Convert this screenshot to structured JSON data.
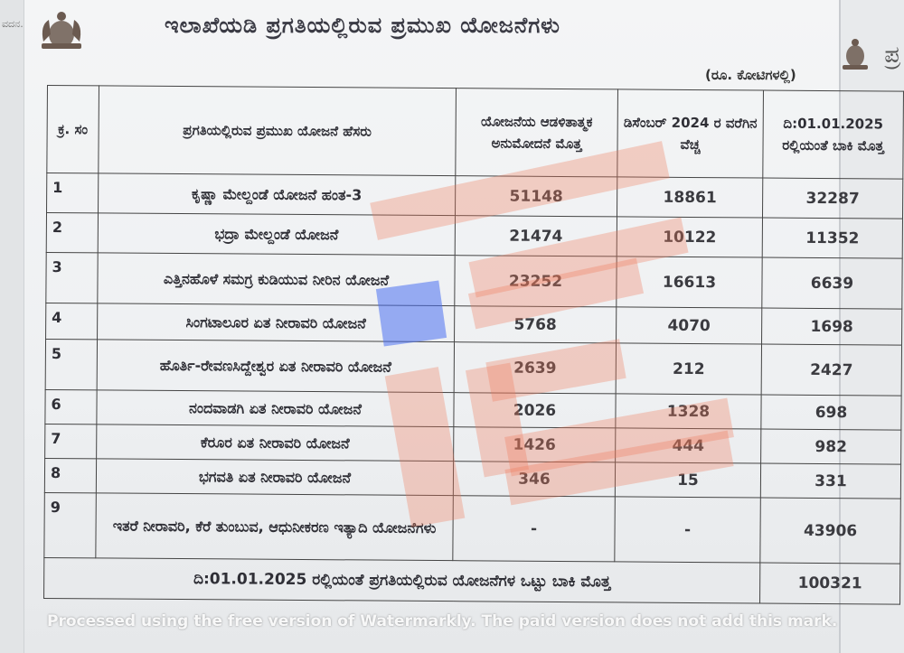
{
  "margin_left_text": "ವದನ.",
  "margin_right_text": "ಪ್ರ",
  "title": "ಇಲಾಖೆಯಡಿ ಪ್ರಗತಿಯಲ್ಲಿರುವ ಪ್ರಮುಖ ಯೋಜನೆಗಳು",
  "unit_note": "(ರೂ. ಕೋಟಿಗಳಲ್ಲಿ)",
  "table": {
    "headers": {
      "sl_no": "ಕ್ರ. ಸಂ",
      "name": "ಪ್ರಗತಿಯಲ್ಲಿರುವ ಪ್ರಮುಖ ಯೋಜನೆ ಹೆಸರು",
      "sanctioned": "ಯೋಜನೆಯ ಆಡಳಿತಾತ್ಮಕ ಅನುಮೋದನೆ ಮೊತ್ತ",
      "spent": "ಡಿಸೆಂಬರ್ 2024 ರ ವರೆಗಿನ ವೆಚ್ಚ",
      "balance": "ದಿ:01.01.2025 ರಲ್ಲಿಯಂತೆ ಬಾಕಿ ಮೊತ್ತ"
    },
    "rows": [
      {
        "no": "1",
        "name": "ಕೃಷ್ಣಾ ಮೇಲ್ದಂಡೆ ಯೋಜನೆ ಹಂತ-3",
        "sanctioned": "51148",
        "spent": "18861",
        "balance": "32287"
      },
      {
        "no": "2",
        "name": "ಭದ್ರಾ ಮೇಲ್ದಂಡೆ ಯೋಜನೆ",
        "sanctioned": "21474",
        "spent": "10122",
        "balance": "11352"
      },
      {
        "no": "3",
        "name": "ಎತ್ತಿನಹೊಳೆ ಸಮಗ್ರ ಕುಡಿಯುವ ನೀರಿನ ಯೋಜನೆ",
        "sanctioned": "23252",
        "spent": "16613",
        "balance": "6639"
      },
      {
        "no": "4",
        "name": "ಸಿಂಗಟಾಲೂರ ಏತ ನೀರಾವರಿ ಯೋಜನೆ",
        "sanctioned": "5768",
        "spent": "4070",
        "balance": "1698"
      },
      {
        "no": "5",
        "name": "ಹೊರ್ತಿ-ರೇವಣಸಿದ್ದೇಶ್ವರ ಏತ ನೀರಾವರಿ ಯೋಜನೆ",
        "sanctioned": "2639",
        "spent": "212",
        "balance": "2427"
      },
      {
        "no": "6",
        "name": "ನಂದವಾಡಗಿ ಏತ ನೀರಾವರಿ ಯೋಜನೆ",
        "sanctioned": "2026",
        "spent": "1328",
        "balance": "698"
      },
      {
        "no": "7",
        "name": "ಕೆರೂರ ಏತ ನೀರಾವರಿ ಯೋಜನೆ",
        "sanctioned": "1426",
        "spent": "444",
        "balance": "982"
      },
      {
        "no": "8",
        "name": "ಭಗವತಿ ಏತ ನೀರಾವರಿ ಯೋಜನೆ",
        "sanctioned": "346",
        "spent": "15",
        "balance": "331"
      },
      {
        "no": "9",
        "name": "ಇತರೆ ನೀರಾವರಿ, ಕೆರೆ ತುಂಬುವ, ಆಧುನೀಕರಣ ಇತ್ಯಾದಿ ಯೋಜನೆಗಳು",
        "sanctioned": "-",
        "spent": "-",
        "balance": "43906"
      }
    ],
    "total_label": "ದಿ:01.01.2025 ರಲ್ಲಿಯಂತೆ ಪ್ರಗತಿಯಲ್ಲಿರುವ ಯೋಜನೆಗಳ ಒಟ್ಟು ಬಾಕಿ ಮೊತ್ತ",
    "total_value": "100321"
  },
  "watermark": "Processed using the free version of Watermarkly. The paid version does not add this mark.",
  "colors": {
    "highlight_red": "#f07a5a",
    "highlight_blue": "#4a6ff0",
    "ink": "#2f2f36"
  }
}
